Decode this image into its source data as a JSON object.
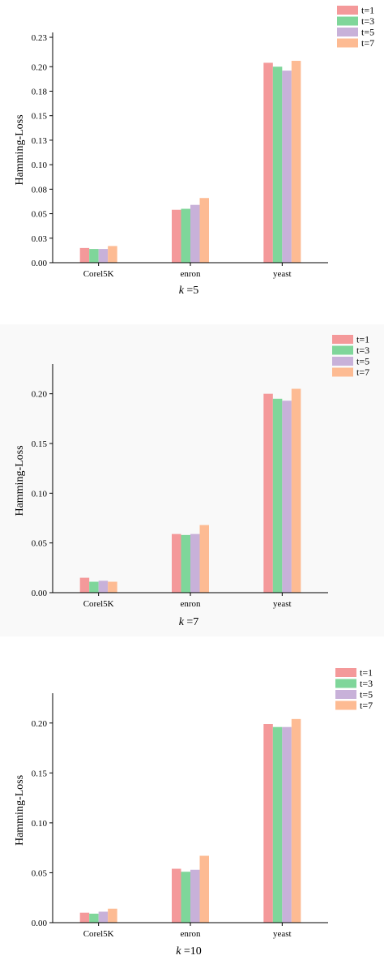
{
  "colors": {
    "t1": "#f4999a",
    "t3": "#7fd69a",
    "t5": "#c8b1d9",
    "t7": "#fdbb93"
  },
  "chart_data": [
    {
      "type": "bar",
      "categories": [
        "Corel5K",
        "enron",
        "yeast"
      ],
      "ylabel": "Hamming-Loss",
      "caption_var": "k",
      "caption_value": "=5",
      "ylim": [
        0,
        0.23
      ],
      "yticks": [
        0.0,
        0.025,
        0.05,
        0.075,
        0.1,
        0.125,
        0.15,
        0.175,
        0.2,
        0.23
      ],
      "ytick_labels": [
        "0.00",
        "0.03",
        "0.05",
        "0.08",
        "0.10",
        "0.13",
        "0.15",
        "0.18",
        "0.20",
        "0.23"
      ],
      "legend_placement": "top-right",
      "series": [
        {
          "name": "t=1",
          "color_key": "t1",
          "values": [
            0.015,
            0.054,
            0.204
          ]
        },
        {
          "name": "t=3",
          "color_key": "t3",
          "values": [
            0.014,
            0.055,
            0.2
          ]
        },
        {
          "name": "t=5",
          "color_key": "t5",
          "values": [
            0.014,
            0.059,
            0.196
          ]
        },
        {
          "name": "t=7",
          "color_key": "t7",
          "values": [
            0.017,
            0.066,
            0.206
          ]
        }
      ]
    },
    {
      "type": "bar",
      "categories": [
        "Corel5K",
        "enron",
        "yeast"
      ],
      "ylabel": "Hamming-Loss",
      "caption_var": "k",
      "caption_value": "=7",
      "ylim": [
        0,
        0.225
      ],
      "yticks": [
        0.0,
        0.05,
        0.1,
        0.15,
        0.2
      ],
      "ytick_labels": [
        "0.00",
        "0.05",
        "0.10",
        "0.15",
        "0.20"
      ],
      "legend_placement": "top-right",
      "series": [
        {
          "name": "t=1",
          "color_key": "t1",
          "values": [
            0.015,
            0.059,
            0.2
          ]
        },
        {
          "name": "t=3",
          "color_key": "t3",
          "values": [
            0.011,
            0.058,
            0.195
          ]
        },
        {
          "name": "t=5",
          "color_key": "t5",
          "values": [
            0.012,
            0.059,
            0.193
          ]
        },
        {
          "name": "t=7",
          "color_key": "t7",
          "values": [
            0.011,
            0.068,
            0.205
          ]
        }
      ]
    },
    {
      "type": "bar",
      "categories": [
        "Corel5K",
        "enron",
        "yeast"
      ],
      "ylabel": "Hamming-Loss",
      "caption_var": "k",
      "caption_value": "=10",
      "ylim": [
        0,
        0.225
      ],
      "yticks": [
        0.0,
        0.05,
        0.1,
        0.15,
        0.2
      ],
      "ytick_labels": [
        "0.00",
        "0.05",
        "0.10",
        "0.15",
        "0.20"
      ],
      "legend_placement": "top-right",
      "series": [
        {
          "name": "t=1",
          "color_key": "t1",
          "values": [
            0.01,
            0.054,
            0.199
          ]
        },
        {
          "name": "t=3",
          "color_key": "t3",
          "values": [
            0.009,
            0.051,
            0.196
          ]
        },
        {
          "name": "t=5",
          "color_key": "t5",
          "values": [
            0.011,
            0.053,
            0.196
          ]
        },
        {
          "name": "t=7",
          "color_key": "t7",
          "values": [
            0.014,
            0.067,
            0.204
          ]
        }
      ]
    }
  ]
}
